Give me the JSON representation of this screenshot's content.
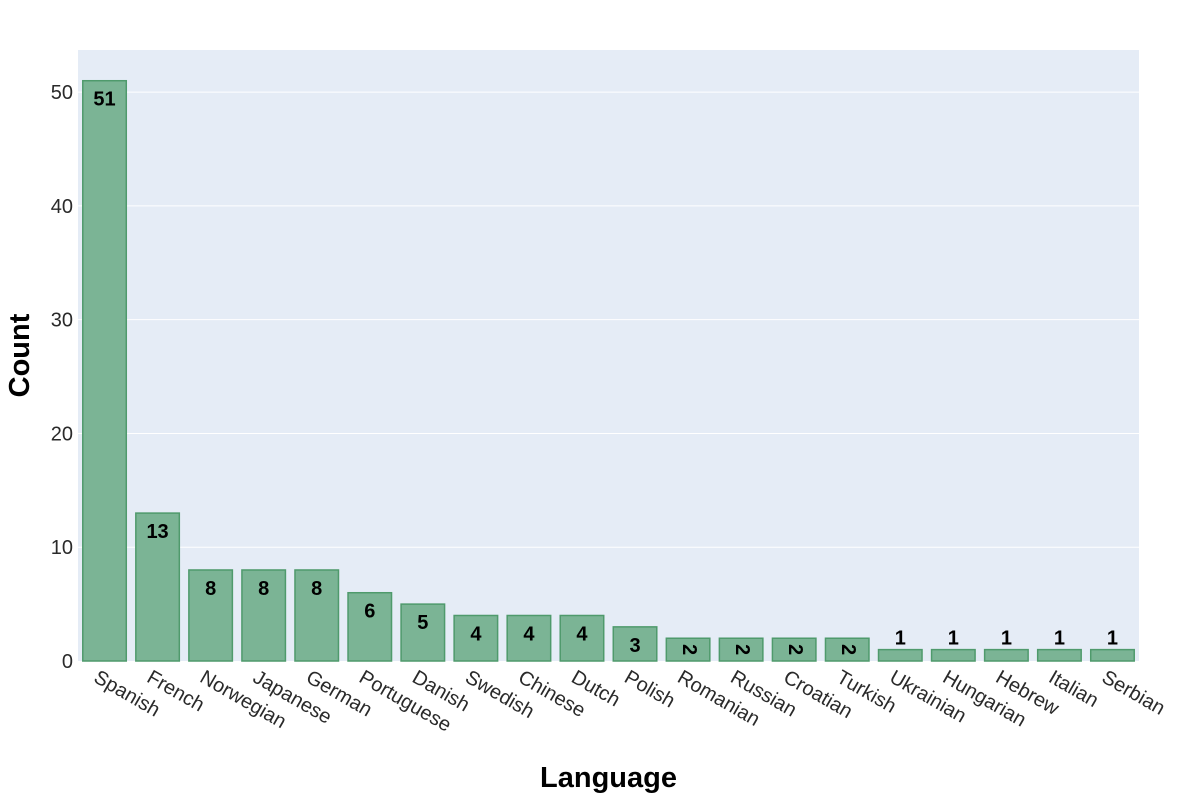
{
  "chart_data": {
    "type": "bar",
    "title": "",
    "xlabel": "Language",
    "ylabel": "Count",
    "categories": [
      "Spanish",
      "French",
      "Norwegian",
      "Japanese",
      "German",
      "Portuguese",
      "Danish",
      "Swedish",
      "Chinese",
      "Dutch",
      "Polish",
      "Romanian",
      "Russian",
      "Croatian",
      "Turkish",
      "Ukrainian",
      "Hungarian",
      "Hebrew",
      "Italian",
      "Serbian"
    ],
    "values": [
      51,
      13,
      8,
      8,
      8,
      6,
      5,
      4,
      4,
      4,
      3,
      2,
      2,
      2,
      2,
      1,
      1,
      1,
      1,
      1
    ],
    "ylim": [
      0,
      53.7
    ],
    "yticks": [
      0,
      10,
      20,
      30,
      40,
      50
    ],
    "grid": true,
    "data_labels": true,
    "colors": {
      "bar_fill": "#7bb495",
      "bar_stroke": "#4f9a6c",
      "plot_background": "#e5ecf6",
      "gridline": "#ffffff"
    }
  }
}
